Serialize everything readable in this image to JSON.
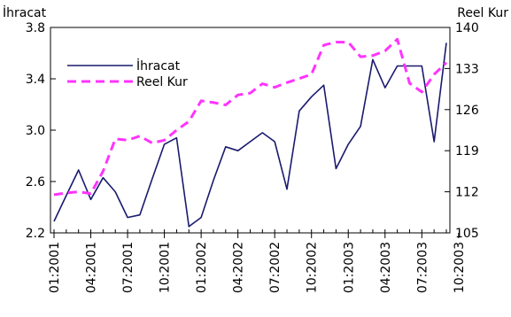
{
  "chart_data": {
    "type": "line",
    "left_axis_title": "İhracat",
    "right_axis_title": "Reel Kur",
    "x_tick_labels": [
      "01:2001",
      "04:2001",
      "07:2001",
      "10:2001",
      "01:2002",
      "04:2002",
      "07:2002",
      "10:2002",
      "01:2003",
      "04:2003",
      "07:2003",
      "10:2003"
    ],
    "left_axis": {
      "min": 2.2,
      "max": 3.8,
      "ticks": [
        "2.2",
        "2.6",
        "3.0",
        "3.4",
        "3.8"
      ]
    },
    "right_axis": {
      "min": 105,
      "max": 140,
      "ticks": [
        "105",
        "112",
        "119",
        "126",
        "133",
        "140"
      ]
    },
    "legend": {
      "position": "top-left"
    },
    "series": [
      {
        "name": "İhracat",
        "axis": "left",
        "color": "#1a1a6e",
        "style": "solid",
        "values": [
          2.29,
          2.49,
          2.69,
          2.46,
          2.63,
          2.52,
          2.32,
          2.34,
          2.62,
          2.89,
          2.94,
          2.25,
          2.32,
          2.61,
          2.87,
          2.84,
          2.91,
          2.98,
          2.91,
          2.54,
          3.15,
          3.26,
          3.35,
          2.7,
          2.89,
          3.03,
          3.55,
          3.33,
          3.5,
          3.5,
          3.5,
          2.91,
          3.68
        ]
      },
      {
        "name": "Reel Kur",
        "axis": "right",
        "color": "#ff33ff",
        "style": "dashed",
        "values": [
          111.5,
          111.8,
          112.0,
          111.7,
          115.5,
          121.0,
          120.8,
          121.5,
          120.3,
          120.8,
          122.5,
          124.0,
          127.5,
          127.2,
          126.8,
          128.5,
          128.8,
          130.4,
          129.8,
          130.6,
          131.3,
          132.0,
          137.0,
          137.5,
          137.5,
          135.0,
          135.2,
          136.0,
          138.0,
          130.5,
          129.0,
          132.0,
          134.0
        ]
      }
    ]
  }
}
